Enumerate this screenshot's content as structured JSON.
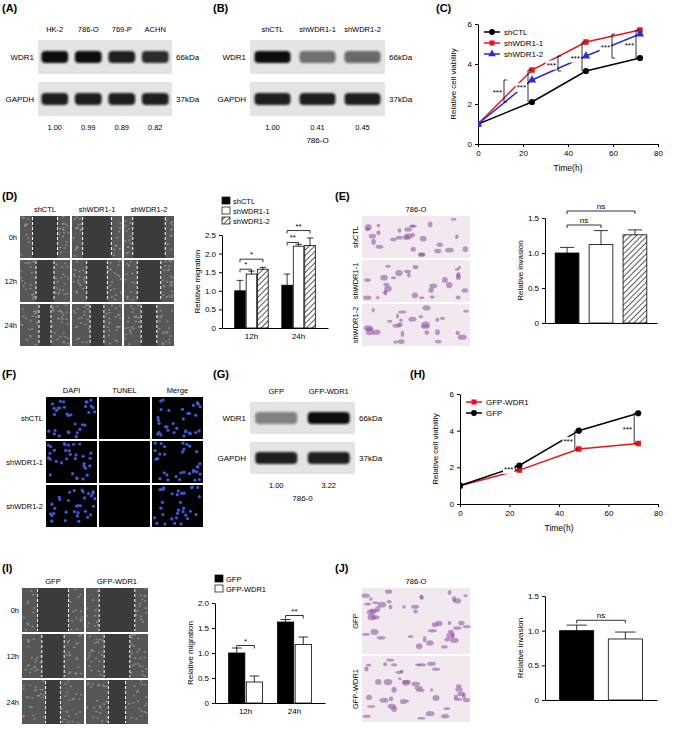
{
  "letters": {
    "A": "(A)",
    "B": "(B)",
    "C": "(C)",
    "D": "(D)",
    "E": "(E)",
    "F": "(F)",
    "G": "(G)",
    "H": "(H)",
    "I": "(I)",
    "J": "(J)"
  },
  "blots": {
    "A": {
      "columns": [
        "HK-2",
        "786-O",
        "769-P",
        "ACHN"
      ],
      "rows": [
        {
          "label": "WDR1",
          "kda": "66kDa"
        },
        {
          "label": "GAPDH",
          "kda": "37kDa"
        }
      ],
      "quant": [
        {
          "value": 1,
          "label": "1.00"
        },
        {
          "value": 0.99,
          "label": "0.99"
        },
        {
          "value": 0.89,
          "label": "0.89"
        },
        {
          "value": 0.82,
          "label": "0.82"
        }
      ]
    },
    "B": {
      "columns": [
        "shCTL",
        "shWDR1-1",
        "shWDR1-2"
      ],
      "rows": [
        {
          "label": "WDR1",
          "kda": "66kDa"
        },
        {
          "label": "GAPDH",
          "kda": "37kDa"
        }
      ],
      "quant": [
        {
          "value": 1,
          "label": "1.00"
        },
        {
          "value": 0.41,
          "label": "0.41"
        },
        {
          "value": 0.45,
          "label": "0.45"
        }
      ],
      "cell_line": "786-O"
    },
    "G": {
      "columns": [
        "GFP",
        "GFP-WDR1"
      ],
      "rows": [
        {
          "label": "WDR1",
          "kda": "66kDa"
        },
        {
          "label": "GAPDH",
          "kda": "37kDa"
        }
      ],
      "quant": [
        {
          "value": 1,
          "label": "1.00"
        },
        {
          "value": 3.22,
          "label": "3.22"
        }
      ],
      "cell_line": "786-0"
    }
  },
  "micrographs": {
    "D": {
      "columns": [
        "shCTL",
        "shWDR1-1",
        "shWDR1-2"
      ],
      "rows": [
        "0h",
        "12h",
        "24h"
      ]
    },
    "E": {
      "columns": [
        "786-O"
      ],
      "rows": [
        "shCTL",
        "shWDR1-1",
        "shWDR1-2"
      ]
    },
    "F": {
      "columns": [
        "DAPI",
        "TUNEL",
        "Merge"
      ],
      "rows": [
        "shCTL",
        "shWDR1-1",
        "shWDR1-2"
      ]
    },
    "I": {
      "columns": [
        "GFP",
        "GFP-WDR1"
      ],
      "rows": [
        "0h",
        "12h",
        "24h"
      ]
    },
    "J": {
      "columns": [
        "786-O"
      ],
      "rows": [
        "GFP",
        "GFP-WDR1"
      ]
    }
  },
  "chart_data": [
    {
      "type": "line",
      "x": [
        0,
        24,
        48,
        72
      ],
      "xlim": [
        0,
        80
      ],
      "xticks": [
        0,
        20,
        40,
        60,
        80
      ],
      "ylim": [
        0,
        6
      ],
      "yticks": [
        0,
        2,
        4,
        6
      ],
      "x_label": "Time(h)",
      "y_label": "Relative cell viability",
      "legend": "top-left",
      "series": [
        {
          "name": "shCTL",
          "color": "#000000",
          "marker": "circle",
          "values": [
            1,
            2.1,
            3.65,
            4.3
          ]
        },
        {
          "name": "shWDR1-1",
          "color": "#e8141b",
          "marker": "square",
          "values": [
            1,
            3.7,
            5.1,
            5.7
          ]
        },
        {
          "name": "shWDR1-2",
          "color": "#2b2bd6",
          "marker": "triangle",
          "values": [
            1,
            3.2,
            4.4,
            5.5
          ]
        }
      ],
      "annotations": [
        {
          "text": "***",
          "x": 24,
          "y": [
            2.1,
            3.7
          ]
        },
        {
          "text": "***",
          "x": 24,
          "y": [
            2.1,
            3.2
          ]
        },
        {
          "text": "***",
          "x": 48,
          "y": [
            3.65,
            5.1
          ]
        },
        {
          "text": "***",
          "x": 48,
          "y": [
            3.65,
            4.4
          ]
        },
        {
          "text": "***",
          "x": 72,
          "y": [
            4.3,
            5.7
          ]
        },
        {
          "text": "***",
          "x": 72,
          "y": [
            4.3,
            5.5
          ]
        }
      ]
    },
    {
      "type": "bar",
      "categories": [
        "12h",
        "24h"
      ],
      "ylim": [
        0,
        2.5
      ],
      "yticks": [
        0,
        0.5,
        {
          "value": 1,
          "label": "1.0"
        },
        1.5,
        {
          "value": 2,
          "label": "2.0"
        },
        2.5
      ],
      "y_label": "Relative migration",
      "legend": "top",
      "series": [
        {
          "name": "shCTL",
          "color": "#000000",
          "values": [
            1.0,
            1.15
          ],
          "errors": [
            0.28,
            0.3
          ]
        },
        {
          "name": "shWDR1-1",
          "color": "#ffffff",
          "values": [
            1.45,
            2.2
          ],
          "errors": [
            0.08,
            0.05
          ]
        },
        {
          "name": "shWDR1-2",
          "color": "#ffffff",
          "values": [
            1.58,
            2.22
          ],
          "errors": [
            0.05,
            0.2
          ]
        }
      ],
      "annotations": [
        {
          "text": "*",
          "category": "12h",
          "from": "shCTL",
          "to": "shWDR1-1",
          "y": 1.58
        },
        {
          "text": "*",
          "category": "12h",
          "from": "shCTL",
          "to": "shWDR1-2",
          "y": 1.85
        },
        {
          "text": "**",
          "category": "24h",
          "from": "shCTL",
          "to": "shWDR1-1",
          "y": 2.3
        },
        {
          "text": "**",
          "category": "24h",
          "from": "shCTL",
          "to": "shWDR1-2",
          "y": 2.62
        }
      ]
    },
    {
      "type": "bar",
      "categories": [
        null,
        null,
        null
      ],
      "values": [
        1.0,
        1.12,
        1.26
      ],
      "errors": [
        0.08,
        0.2,
        0.07
      ],
      "colors": [
        "#000000",
        "#ffffff",
        "#ffffff"
      ],
      "ylim": [
        0,
        1.5
      ],
      "yticks": [
        0,
        0.5,
        {
          "value": 1,
          "label": "1.0"
        },
        1.5
      ],
      "y_label": "Relative invasion",
      "annotations": [
        {
          "text": "ns",
          "from": 0,
          "to": 1,
          "y": 1.4
        },
        {
          "text": "ns",
          "from": 0,
          "to": 2,
          "y": 1.6
        }
      ]
    },
    {
      "type": "line",
      "x": [
        0,
        24,
        48,
        72
      ],
      "xlim": [
        0,
        80
      ],
      "xticks": [
        0,
        20,
        40,
        60,
        80
      ],
      "ylim": [
        0,
        6
      ],
      "yticks": [
        0,
        2,
        4,
        6
      ],
      "x_label": "Time(h)",
      "y_label": "Relative cell viability",
      "legend": "top-left",
      "series": [
        {
          "name": "GFP-WDR1",
          "color": "#e8141b",
          "marker": "square",
          "values": [
            1,
            1.85,
            3.0,
            3.3
          ]
        },
        {
          "name": "GFP",
          "color": "#000000",
          "marker": "circle",
          "values": [
            1,
            2.1,
            4.0,
            4.95
          ]
        }
      ],
      "annotations": [
        {
          "text": "***",
          "x": 24,
          "y": [
            1.85,
            2.1
          ]
        },
        {
          "text": "***",
          "x": 48,
          "y": [
            3.0,
            4.0
          ]
        },
        {
          "text": "***",
          "x": 72,
          "y": [
            3.3,
            4.95
          ]
        }
      ]
    },
    {
      "type": "bar",
      "categories": [
        "12h",
        "24h"
      ],
      "ylim": [
        0,
        2
      ],
      "yticks": [
        0,
        0.5,
        {
          "value": 1,
          "label": "1.0"
        },
        1.5,
        {
          "value": 2,
          "label": "2.0"
        }
      ],
      "y_label": "Relative migration",
      "legend": "top",
      "series": [
        {
          "name": "GFP",
          "color": "#000000",
          "values": [
            1.0,
            1.62
          ],
          "errors": [
            0.1,
            0.05
          ]
        },
        {
          "name": "GFP-WDR1",
          "color": "#ffffff",
          "values": [
            0.42,
            1.17
          ],
          "errors": [
            0.12,
            0.15
          ]
        }
      ],
      "annotations": [
        {
          "text": "*",
          "category": "12h",
          "from": "GFP",
          "to": "GFP-WDR1",
          "y": 1.15
        },
        {
          "text": "**",
          "category": "24h",
          "from": "GFP",
          "to": "GFP-WDR1",
          "y": 1.75
        }
      ]
    },
    {
      "type": "bar",
      "categories": [
        null,
        null
      ],
      "values": [
        1.0,
        0.88
      ],
      "errors": [
        0.08,
        0.1
      ],
      "colors": [
        "#000000",
        "#ffffff"
      ],
      "ylim": [
        0,
        1.5
      ],
      "yticks": [
        0,
        0.5,
        {
          "value": 1,
          "label": "1.0"
        },
        1.5
      ],
      "y_label": "Relative invasion",
      "annotations": [
        {
          "text": "ns",
          "from": 0,
          "to": 1,
          "y": 1.15
        }
      ]
    }
  ]
}
